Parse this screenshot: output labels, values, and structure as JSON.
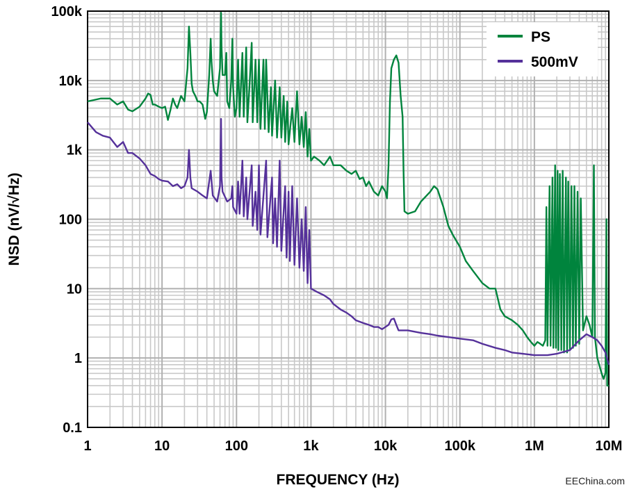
{
  "chart_data": {
    "type": "line",
    "title": "",
    "xlabel": "FREQUENCY (Hz)",
    "ylabel": "NSD (nV/√Hz)",
    "x_scale": "log",
    "y_scale": "log",
    "xlim": [
      1,
      10000000
    ],
    "ylim": [
      0.1,
      100000
    ],
    "grid": true,
    "legend_position": "top-right",
    "x_ticks": [
      {
        "value": 1,
        "label": "1"
      },
      {
        "value": 10,
        "label": "10"
      },
      {
        "value": 100,
        "label": "100"
      },
      {
        "value": 1000,
        "label": "1k"
      },
      {
        "value": 10000,
        "label": "10k"
      },
      {
        "value": 100000,
        "label": "100k"
      },
      {
        "value": 1000000,
        "label": "1M"
      },
      {
        "value": 10000000,
        "label": "10M"
      }
    ],
    "y_ticks": [
      {
        "value": 0.1,
        "label": "0.1"
      },
      {
        "value": 1,
        "label": "1"
      },
      {
        "value": 10,
        "label": "10"
      },
      {
        "value": 100,
        "label": "100"
      },
      {
        "value": 1000,
        "label": "1k"
      },
      {
        "value": 10000,
        "label": "10k"
      },
      {
        "value": 100000,
        "label": "100k"
      }
    ],
    "series": [
      {
        "name": "PS",
        "color": "#00843d",
        "points": [
          [
            1,
            5000
          ],
          [
            1.5,
            5500
          ],
          [
            2,
            5500
          ],
          [
            2.5,
            4500
          ],
          [
            3,
            5000
          ],
          [
            3.5,
            3800
          ],
          [
            4,
            3600
          ],
          [
            5,
            4200
          ],
          [
            6,
            5500
          ],
          [
            6.5,
            6500
          ],
          [
            7,
            6200
          ],
          [
            7.5,
            4500
          ],
          [
            8,
            4500
          ],
          [
            9,
            4200
          ],
          [
            10,
            4000
          ],
          [
            11,
            4200
          ],
          [
            12,
            2700
          ],
          [
            13,
            3800
          ],
          [
            14,
            5500
          ],
          [
            15,
            4500
          ],
          [
            16,
            4000
          ],
          [
            18,
            6000
          ],
          [
            20,
            5000
          ],
          [
            22,
            15000
          ],
          [
            23,
            60000
          ],
          [
            24,
            25000
          ],
          [
            25,
            9000
          ],
          [
            26,
            7000
          ],
          [
            28,
            6000
          ],
          [
            30,
            5000
          ],
          [
            32,
            5000
          ],
          [
            35,
            4500
          ],
          [
            38,
            2800
          ],
          [
            40,
            3500
          ],
          [
            43,
            12000
          ],
          [
            45,
            40000
          ],
          [
            46,
            20000
          ],
          [
            48,
            10000
          ],
          [
            50,
            7000
          ],
          [
            55,
            6000
          ],
          [
            60,
            15000
          ],
          [
            62,
            95000
          ],
          [
            63,
            30000
          ],
          [
            65,
            12000
          ],
          [
            70,
            12000
          ],
          [
            73,
            25000
          ],
          [
            75,
            5000
          ],
          [
            80,
            4000
          ],
          [
            85,
            10000
          ],
          [
            88,
            40000
          ],
          [
            90,
            8000
          ],
          [
            95,
            3000
          ],
          [
            100,
            4000
          ],
          [
            105,
            20000
          ],
          [
            110,
            3000
          ],
          [
            120,
            25000
          ],
          [
            125,
            3000
          ],
          [
            135,
            30000
          ],
          [
            140,
            2500
          ],
          [
            150,
            9000
          ],
          [
            160,
            35000
          ],
          [
            165,
            2500
          ],
          [
            180,
            20000
          ],
          [
            190,
            2500
          ],
          [
            200,
            20000
          ],
          [
            210,
            2000
          ],
          [
            230,
            20000
          ],
          [
            240,
            2000
          ],
          [
            250,
            20000
          ],
          [
            270,
            1800
          ],
          [
            290,
            8000
          ],
          [
            300,
            1600
          ],
          [
            330,
            10000
          ],
          [
            350,
            1500
          ],
          [
            380,
            8000
          ],
          [
            400,
            1500
          ],
          [
            430,
            6000
          ],
          [
            450,
            1300
          ],
          [
            480,
            5000
          ],
          [
            500,
            1200
          ],
          [
            560,
            4000
          ],
          [
            600,
            1300
          ],
          [
            650,
            7000
          ],
          [
            700,
            1200
          ],
          [
            750,
            3000
          ],
          [
            800,
            1100
          ],
          [
            850,
            3500
          ],
          [
            900,
            800
          ],
          [
            950,
            2000
          ],
          [
            1000,
            700
          ],
          [
            1100,
            800
          ],
          [
            1300,
            700
          ],
          [
            1500,
            600
          ],
          [
            1800,
            800
          ],
          [
            2000,
            600
          ],
          [
            2500,
            600
          ],
          [
            3000,
            500
          ],
          [
            3500,
            450
          ],
          [
            4000,
            500
          ],
          [
            4500,
            380
          ],
          [
            5000,
            400
          ],
          [
            5500,
            300
          ],
          [
            6000,
            350
          ],
          [
            7000,
            250
          ],
          [
            8000,
            220
          ],
          [
            9000,
            300
          ],
          [
            10000,
            250
          ],
          [
            10500,
            200
          ],
          [
            11000,
            600
          ],
          [
            11500,
            5000
          ],
          [
            12000,
            15000
          ],
          [
            13000,
            20000
          ],
          [
            14000,
            23000
          ],
          [
            15000,
            18000
          ],
          [
            16000,
            6000
          ],
          [
            17000,
            3000
          ],
          [
            17500,
            500
          ],
          [
            18000,
            130
          ],
          [
            20000,
            120
          ],
          [
            25000,
            130
          ],
          [
            30000,
            180
          ],
          [
            40000,
            250
          ],
          [
            45000,
            300
          ],
          [
            50000,
            270
          ],
          [
            60000,
            150
          ],
          [
            70000,
            80
          ],
          [
            80000,
            60
          ],
          [
            100000,
            40
          ],
          [
            120000,
            25
          ],
          [
            150000,
            18
          ],
          [
            200000,
            12
          ],
          [
            250000,
            10
          ],
          [
            300000,
            10
          ],
          [
            350000,
            5
          ],
          [
            400000,
            4
          ],
          [
            500000,
            3.5
          ],
          [
            600000,
            3
          ],
          [
            700000,
            2.5
          ],
          [
            800000,
            2
          ],
          [
            900000,
            1.7
          ],
          [
            1000000,
            1.5
          ],
          [
            1100000,
            1.7
          ],
          [
            1200000,
            1.6
          ],
          [
            1300000,
            1.5
          ],
          [
            1400000,
            1.8
          ],
          [
            1450000,
            150
          ],
          [
            1500000,
            1.5
          ],
          [
            1600000,
            300
          ],
          [
            1650000,
            1.5
          ],
          [
            1750000,
            400
          ],
          [
            1800000,
            1.4
          ],
          [
            1900000,
            600
          ],
          [
            1950000,
            1.4
          ],
          [
            2050000,
            500
          ],
          [
            2100000,
            1.3
          ],
          [
            2200000,
            450
          ],
          [
            2300000,
            1.3
          ],
          [
            2400000,
            500
          ],
          [
            2500000,
            1.2
          ],
          [
            2650000,
            400
          ],
          [
            2750000,
            1.2
          ],
          [
            2850000,
            350
          ],
          [
            3000000,
            1.3
          ],
          [
            3150000,
            300
          ],
          [
            3300000,
            1.4
          ],
          [
            3450000,
            300
          ],
          [
            3600000,
            1.5
          ],
          [
            3800000,
            250
          ],
          [
            4000000,
            1.6
          ],
          [
            4200000,
            200
          ],
          [
            4500000,
            2.5
          ],
          [
            5000000,
            4
          ],
          [
            5500000,
            3
          ],
          [
            6000000,
            2
          ],
          [
            6300000,
            600
          ],
          [
            6500000,
            2
          ],
          [
            7000000,
            1
          ],
          [
            8000000,
            0.6
          ],
          [
            8500000,
            0.5
          ],
          [
            9000000,
            0.6
          ],
          [
            9300000,
            100
          ],
          [
            9500000,
            0.4
          ],
          [
            10000000,
            0.4
          ]
        ]
      },
      {
        "name": "500mV",
        "color": "#55319a",
        "points": [
          [
            1,
            2500
          ],
          [
            1.3,
            1800
          ],
          [
            1.6,
            1600
          ],
          [
            2,
            1500
          ],
          [
            2.5,
            1100
          ],
          [
            3,
            1300
          ],
          [
            3.5,
            900
          ],
          [
            4,
            900
          ],
          [
            5,
            750
          ],
          [
            6,
            600
          ],
          [
            7,
            450
          ],
          [
            8,
            420
          ],
          [
            9,
            380
          ],
          [
            10,
            360
          ],
          [
            12,
            350
          ],
          [
            14,
            300
          ],
          [
            16,
            320
          ],
          [
            18,
            280
          ],
          [
            20,
            300
          ],
          [
            22,
            400
          ],
          [
            23,
            1000
          ],
          [
            24,
            400
          ],
          [
            25,
            280
          ],
          [
            30,
            250
          ],
          [
            35,
            220
          ],
          [
            40,
            200
          ],
          [
            45,
            500
          ],
          [
            48,
            220
          ],
          [
            55,
            180
          ],
          [
            60,
            300
          ],
          [
            62,
            2800
          ],
          [
            63,
            400
          ],
          [
            65,
            250
          ],
          [
            75,
            180
          ],
          [
            85,
            200
          ],
          [
            88,
            300
          ],
          [
            90,
            150
          ],
          [
            100,
            120
          ],
          [
            105,
            350
          ],
          [
            110,
            120
          ],
          [
            120,
            700
          ],
          [
            125,
            110
          ],
          [
            135,
            400
          ],
          [
            140,
            100
          ],
          [
            160,
            600
          ],
          [
            165,
            80
          ],
          [
            180,
            250
          ],
          [
            190,
            70
          ],
          [
            200,
            600
          ],
          [
            210,
            60
          ],
          [
            250,
            700
          ],
          [
            260,
            55
          ],
          [
            300,
            400
          ],
          [
            310,
            45
          ],
          [
            330,
            200
          ],
          [
            350,
            40
          ],
          [
            380,
            700
          ],
          [
            400,
            35
          ],
          [
            450,
            300
          ],
          [
            470,
            28
          ],
          [
            500,
            250
          ],
          [
            520,
            25
          ],
          [
            560,
            300
          ],
          [
            600,
            22
          ],
          [
            650,
            200
          ],
          [
            700,
            20
          ],
          [
            750,
            100
          ],
          [
            800,
            18
          ],
          [
            850,
            150
          ],
          [
            900,
            12
          ],
          [
            950,
            70
          ],
          [
            1000,
            10
          ],
          [
            1200,
            9
          ],
          [
            1500,
            8
          ],
          [
            1800,
            7
          ],
          [
            2000,
            6
          ],
          [
            2500,
            5
          ],
          [
            3000,
            4.5
          ],
          [
            3500,
            4
          ],
          [
            4000,
            3.5
          ],
          [
            5000,
            3.2
          ],
          [
            6000,
            3
          ],
          [
            7000,
            2.8
          ],
          [
            8000,
            2.8
          ],
          [
            9000,
            2.6
          ],
          [
            10000,
            2.8
          ],
          [
            11000,
            3
          ],
          [
            12000,
            3.6
          ],
          [
            13000,
            3.7
          ],
          [
            14000,
            3
          ],
          [
            15000,
            2.5
          ],
          [
            20000,
            2.5
          ],
          [
            30000,
            2.3
          ],
          [
            40000,
            2.2
          ],
          [
            50000,
            2.1
          ],
          [
            70000,
            2
          ],
          [
            100000,
            1.9
          ],
          [
            150000,
            1.8
          ],
          [
            200000,
            1.6
          ],
          [
            300000,
            1.4
          ],
          [
            400000,
            1.3
          ],
          [
            500000,
            1.2
          ],
          [
            700000,
            1.15
          ],
          [
            1000000,
            1.1
          ],
          [
            1500000,
            1.1
          ],
          [
            2000000,
            1.15
          ],
          [
            3000000,
            1.3
          ],
          [
            4000000,
            1.8
          ],
          [
            5000000,
            2.2
          ],
          [
            6000000,
            2.0
          ],
          [
            7000000,
            1.8
          ],
          [
            8000000,
            1.5
          ],
          [
            9000000,
            1.2
          ],
          [
            10000000,
            0.8
          ]
        ]
      }
    ]
  },
  "watermark": "EEChina.com"
}
